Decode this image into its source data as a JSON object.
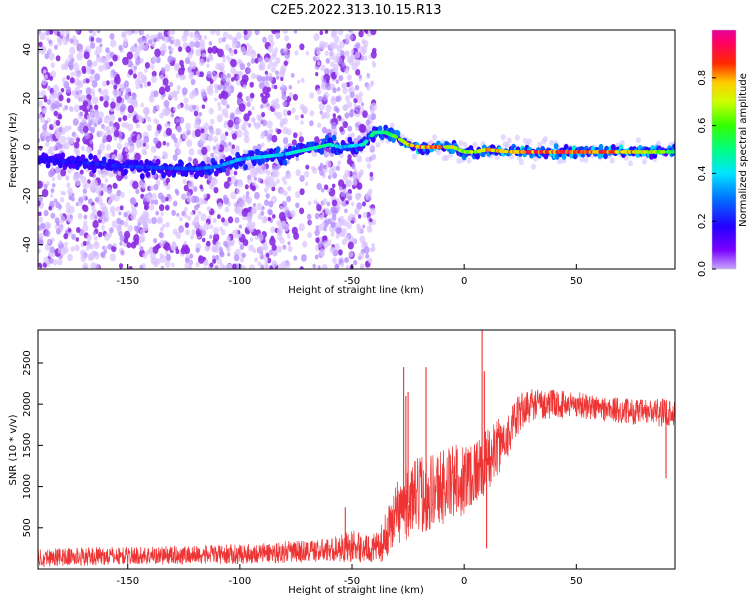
{
  "title": "C2E5.2022.313.10.15.R13",
  "chart_data": [
    {
      "type": "heatmap",
      "xlabel": "Height of straight line (km)",
      "ylabel": "Frequency (Hz)",
      "xlim": [
        -190,
        94
      ],
      "ylim": [
        -50,
        48
      ],
      "xticks": [
        -150,
        -100,
        -50,
        0,
        50
      ],
      "yticks": [
        -40,
        -20,
        0,
        20,
        40
      ],
      "noise_region_x": [
        -190,
        -40
      ],
      "signal_track": {
        "x": [
          -190,
          -150,
          -120,
          -110,
          -100,
          -90,
          -80,
          -70,
          -60,
          -55,
          -45,
          -40,
          -35,
          -30,
          -25,
          -20,
          -15,
          -10,
          -5,
          0,
          5,
          10,
          20,
          30,
          40,
          50,
          60,
          70,
          80,
          90,
          94
        ],
        "frequency": [
          -5,
          -8,
          -9,
          -8,
          -5,
          -4,
          -3,
          -1,
          1,
          0,
          1,
          6,
          6,
          4,
          1,
          0,
          0,
          0,
          0,
          -2,
          -2,
          -1,
          -2,
          -2,
          -2,
          -2,
          -2,
          -2,
          -2,
          -2,
          -2
        ],
        "amplitude": [
          0.2,
          0.25,
          0.3,
          0.35,
          0.4,
          0.45,
          0.45,
          0.5,
          0.55,
          0.4,
          0.5,
          0.55,
          0.6,
          0.7,
          0.85,
          0.92,
          0.95,
          0.9,
          0.8,
          0.7,
          0.75,
          0.85,
          0.92,
          0.95,
          0.97,
          0.97,
          0.95,
          0.93,
          0.85,
          0.7,
          0.6
        ]
      },
      "colorbar": {
        "label": "Normalized spectral amplitude",
        "range": [
          0,
          1
        ],
        "ticks": [
          "0.0",
          "0.2",
          "0.4",
          "0.6",
          "0.8"
        ],
        "tick_values": [
          0,
          0.2,
          0.4,
          0.6,
          0.8
        ],
        "colormap": "rainbow (violet → blue → cyan → green → yellow → red → magenta)"
      }
    },
    {
      "type": "line",
      "xlabel": "Height of straight line (km)",
      "ylabel": "SNR (10 * v/v)",
      "xlim": [
        -190,
        94
      ],
      "ylim": [
        0,
        2900
      ],
      "xticks": [
        -150,
        -100,
        -50,
        0,
        50
      ],
      "yticks": [
        500,
        1000,
        1500,
        2000,
        2500
      ],
      "color": "#ee3333",
      "envelope": {
        "x": [
          -190,
          -150,
          -100,
          -60,
          -50,
          -42,
          -38,
          -35,
          -30,
          -20,
          -10,
          0,
          10,
          20,
          25,
          30,
          40,
          50,
          60,
          70,
          80,
          90,
          94
        ],
        "snr_median": [
          140,
          160,
          180,
          230,
          280,
          240,
          260,
          400,
          700,
          900,
          1000,
          1100,
          1300,
          1650,
          1900,
          2000,
          2000,
          2000,
          1950,
          1920,
          1900,
          1900,
          1900
        ],
        "snr_spread": [
          140,
          140,
          150,
          180,
          250,
          200,
          250,
          350,
          500,
          600,
          600,
          550,
          500,
          350,
          300,
          250,
          220,
          200,
          200,
          200,
          200,
          220,
          200
        ]
      },
      "spikes": [
        {
          "x": -53,
          "snr": 750
        },
        {
          "x": -27,
          "snr": 2450
        },
        {
          "x": -26,
          "snr": 2100
        },
        {
          "x": -17,
          "snr": 2450
        },
        {
          "x": -25,
          "snr": 2150
        },
        {
          "x": 8,
          "snr": 2900
        },
        {
          "x": 9,
          "snr": 2400
        },
        {
          "x": 10,
          "snr": 250
        },
        {
          "x": 90,
          "snr": 1100
        }
      ]
    }
  ]
}
